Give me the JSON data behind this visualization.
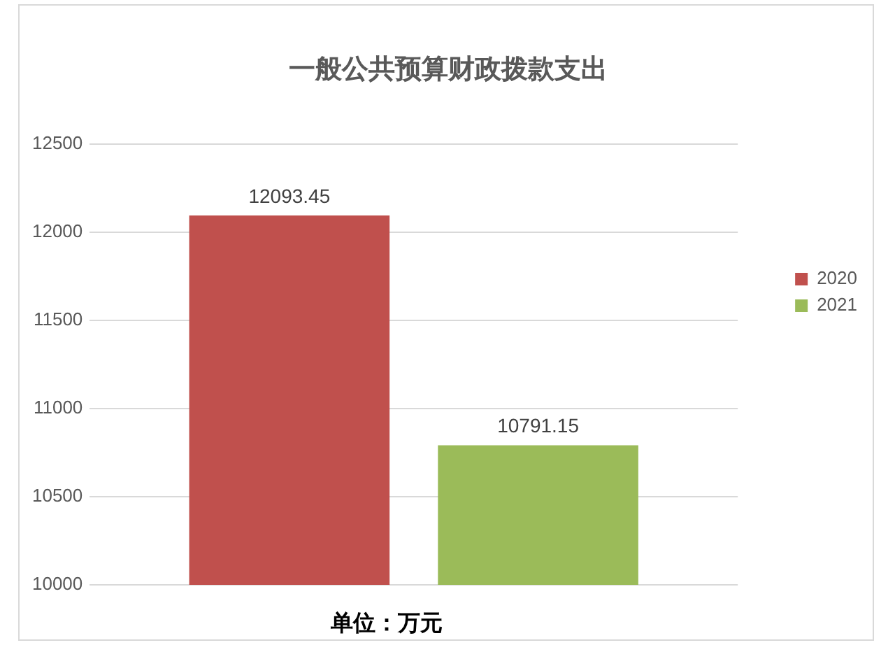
{
  "chart_data": {
    "type": "bar",
    "title": "一般公共预算财政拨款支出",
    "categories": [
      null
    ],
    "series": [
      {
        "name": "2020",
        "color": "#c0504d",
        "values": [
          12093.45
        ]
      },
      {
        "name": "2021",
        "color": "#9bbb59",
        "values": [
          10791.15
        ]
      }
    ],
    "ylim": [
      10000,
      12500
    ],
    "yticks": [
      10000,
      10500,
      11000,
      11500,
      12000,
      12500
    ],
    "grid": "y",
    "legend": "right",
    "data_labels": true,
    "tick_labels": "y",
    "annotations": [
      "单位：万元"
    ]
  }
}
